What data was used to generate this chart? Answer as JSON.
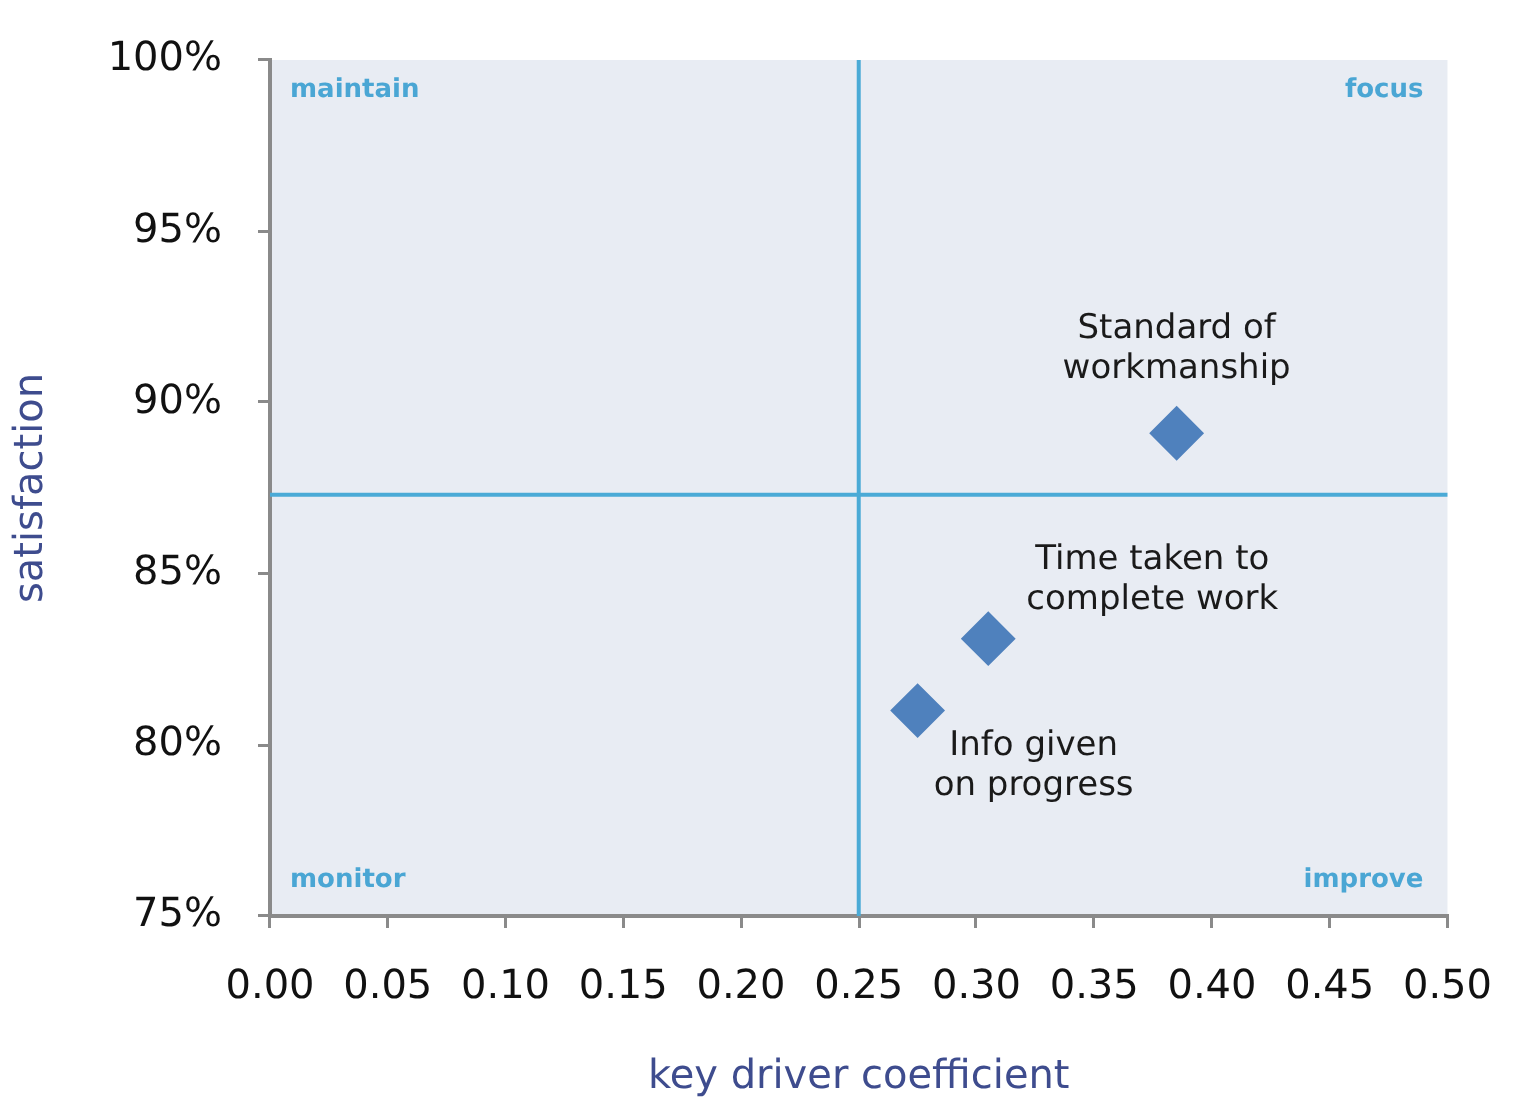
{
  "chart_data": {
    "type": "scatter",
    "xlabel": "key driver coefficient",
    "ylabel": "satisfaction",
    "series": [
      {
        "color": "#4f81bd",
        "x": [
          0.385,
          0.305,
          0.275
        ],
        "values": [
          89.1,
          83.1,
          81.0
        ]
      }
    ],
    "xlim": [
      0,
      0.5
    ],
    "xticks": [
      {
        "value": 0,
        "label": "0.00"
      },
      {
        "value": 0.05,
        "label": "0.05"
      },
      {
        "value": 0.1,
        "label": "0.10"
      },
      {
        "value": 0.15,
        "label": "0.15"
      },
      {
        "value": 0.2,
        "label": "0.20"
      },
      {
        "value": 0.25,
        "label": "0.25"
      },
      {
        "value": 0.3,
        "label": "0.30"
      },
      {
        "value": 0.35,
        "label": "0.35"
      },
      {
        "value": 0.4,
        "label": "0.40"
      },
      {
        "value": 0.45,
        "label": "0.45"
      },
      {
        "value": 0.5,
        "label": "0.50"
      }
    ],
    "ylim": [
      75,
      100
    ],
    "yticks": [
      {
        "value": 75,
        "label": "75%"
      },
      {
        "value": 80,
        "label": "80%"
      },
      {
        "value": 85,
        "label": "85%"
      },
      {
        "value": 90,
        "label": "90%"
      },
      {
        "value": 95,
        "label": "95%"
      },
      {
        "value": 100,
        "label": "100%"
      }
    ],
    "ref_lines": [
      {
        "axis": "x",
        "value": 0.25,
        "color": "#4aaad6"
      },
      {
        "axis": "y",
        "value": 87.3,
        "color": "#4aaad6"
      }
    ],
    "annotations": [
      "maintain",
      "focus",
      "monitor",
      "improve",
      {
        "text": "Standard of workmanship",
        "x": 0.385,
        "y": 89.1
      },
      {
        "text": "Time taken to complete work",
        "x": 0.305,
        "y": 83.1
      },
      {
        "text": "Info given on progress",
        "x": 0.275,
        "y": 81.0
      }
    ],
    "marker": "diamond",
    "grid": false
  }
}
